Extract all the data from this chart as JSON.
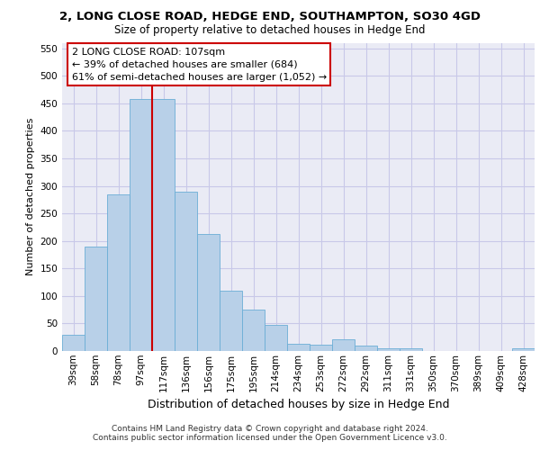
{
  "title_line1": "2, LONG CLOSE ROAD, HEDGE END, SOUTHAMPTON, SO30 4GD",
  "title_line2": "Size of property relative to detached houses in Hedge End",
  "xlabel": "Distribution of detached houses by size in Hedge End",
  "ylabel": "Number of detached properties",
  "footnote1": "Contains HM Land Registry data © Crown copyright and database right 2024.",
  "footnote2": "Contains public sector information licensed under the Open Government Licence v3.0.",
  "annotation_line1": "2 LONG CLOSE ROAD: 107sqm",
  "annotation_line2": "← 39% of detached houses are smaller (684)",
  "annotation_line3": "61% of semi-detached houses are larger (1,052) →",
  "categories": [
    "39sqm",
    "58sqm",
    "78sqm",
    "97sqm",
    "117sqm",
    "136sqm",
    "156sqm",
    "175sqm",
    "195sqm",
    "214sqm",
    "234sqm",
    "253sqm",
    "272sqm",
    "292sqm",
    "311sqm",
    "331sqm",
    "350sqm",
    "370sqm",
    "389sqm",
    "409sqm",
    "428sqm"
  ],
  "values": [
    30,
    190,
    285,
    457,
    457,
    290,
    213,
    110,
    75,
    47,
    13,
    12,
    22,
    10,
    5,
    5,
    0,
    0,
    0,
    0,
    5
  ],
  "bar_color": "#b8d0e8",
  "bar_edgecolor": "#6baed6",
  "vline_x": 3.5,
  "vline_color": "#cc0000",
  "ylim": [
    0,
    560
  ],
  "yticks": [
    0,
    50,
    100,
    150,
    200,
    250,
    300,
    350,
    400,
    450,
    500,
    550
  ],
  "grid_color": "#c8c8e8",
  "bg_color": "#eaebf5",
  "annotation_box_color": "#cc0000",
  "title1_fontsize": 9.5,
  "title2_fontsize": 8.5,
  "ylabel_fontsize": 8,
  "xlabel_fontsize": 9,
  "tick_fontsize": 7.5,
  "footnote_fontsize": 6.5,
  "ann_fontsize": 8
}
